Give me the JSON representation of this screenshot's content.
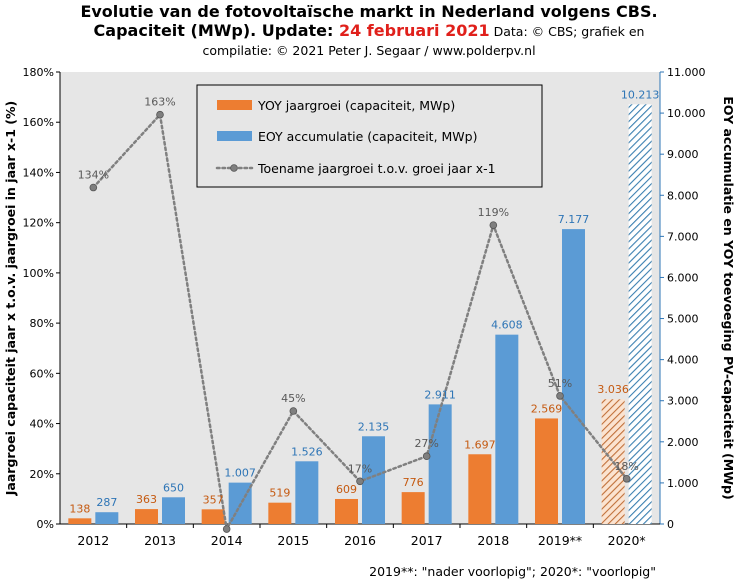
{
  "title": {
    "line1": "Evolutie van de fotovoltaïsche markt in Nederland volgens CBS.",
    "line2_main": "Capaciteit (MWp). Update: ",
    "line2_date": "24 februari 2021",
    "line2_source": " Data: © CBS; grafiek en",
    "line3": "compilatie: © 2021 Peter J. Segaar / www.polderpv.nl"
  },
  "footnote": "2019**: \"nader voorlopig\";  2020*: \"voorlopig\"",
  "colors": {
    "yoy": "#ed7d31",
    "eoy": "#5b9bd5",
    "yoy_label": "#c55a11",
    "eoy_label": "#2e75b6",
    "growth_line": "#808080",
    "plot_bg": "#e6e6e6",
    "right_axis": "#2e75b6"
  },
  "chart_data": {
    "type": "bar",
    "title": "Evolutie van de fotovoltaïsche markt in Nederland volgens CBS.",
    "categories": [
      "2012",
      "2013",
      "2014",
      "2015",
      "2016",
      "2017",
      "2018",
      "2019**",
      "2020*"
    ],
    "series": [
      {
        "name": "YOY jaargroei (capaciteit, MWp)",
        "axis": "right",
        "kind": "bar",
        "values": [
          138,
          363,
          357,
          519,
          609,
          776,
          1697,
          2569,
          3036
        ],
        "labels": [
          "138",
          "363",
          "357",
          "519",
          "609",
          "776",
          "1.697",
          "2.569",
          "3.036"
        ]
      },
      {
        "name": "EOY accumulatie (capaciteit, MWp)",
        "axis": "right",
        "kind": "bar",
        "values": [
          287,
          650,
          1007,
          1526,
          2135,
          2911,
          4608,
          7177,
          10213
        ],
        "labels": [
          "287",
          "650",
          "1.007",
          "1.526",
          "2.135",
          "2.911",
          "4.608",
          "7.177",
          "10.213"
        ]
      },
      {
        "name": "Toename jaargroei t.o.v. groei jaar x-1",
        "axis": "left",
        "kind": "line",
        "values": [
          134,
          163,
          -2,
          45,
          17,
          27,
          119,
          51,
          18
        ],
        "labels": [
          "134%",
          "163%",
          "",
          "45%",
          "17%",
          "27%",
          "119%",
          "51%",
          "18%"
        ]
      }
    ],
    "hatched_category": "2020*",
    "ylabel": "Jaargroei capaciteit jaar x t.o.v. jaargroei in jaar x-1 (%)",
    "ylabel_right": "EOY accumulatie en YOY toevoeging PV-capaciteit (MWp)",
    "ylim_left": [
      0,
      180
    ],
    "yticks_left": [
      "0%",
      "20%",
      "40%",
      "60%",
      "80%",
      "100%",
      "120%",
      "140%",
      "160%",
      "180%"
    ],
    "ylim_right": [
      0,
      11000
    ],
    "yticks_right": [
      "0",
      "1.000",
      "2.000",
      "3.000",
      "4.000",
      "5.000",
      "6.000",
      "7.000",
      "8.000",
      "9.000",
      "10.000",
      "11.000"
    ],
    "grid": false,
    "legend": "top-left"
  }
}
